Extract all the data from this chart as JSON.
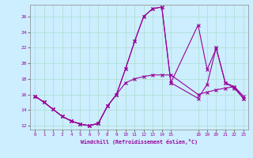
{
  "xlabel": "Windchill (Refroidissement éolien,°C)",
  "background_color": "#cceeff",
  "grid_color": "#aaddcc",
  "line_color": "#990099",
  "xlim": [
    -0.5,
    23.5
  ],
  "ylim": [
    11.5,
    27.5
  ],
  "xticks": [
    0,
    1,
    2,
    3,
    4,
    5,
    6,
    7,
    8,
    9,
    10,
    11,
    12,
    13,
    14,
    15,
    18,
    19,
    20,
    21,
    22,
    23
  ],
  "yticks": [
    12,
    14,
    16,
    18,
    20,
    22,
    24,
    26
  ],
  "line1_x": [
    0,
    1,
    2,
    3,
    4,
    5,
    6,
    7,
    8,
    9,
    10,
    11,
    12,
    13,
    14,
    15,
    18,
    19,
    20,
    21,
    22,
    23
  ],
  "line1_y": [
    15.8,
    15.0,
    14.1,
    13.2,
    12.6,
    12.2,
    12.0,
    12.3,
    14.5,
    16.0,
    17.5,
    18.0,
    18.3,
    18.5,
    18.5,
    18.5,
    16.0,
    16.3,
    16.6,
    16.8,
    17.0,
    15.8
  ],
  "line2_x": [
    0,
    1,
    2,
    3,
    4,
    5,
    6,
    7,
    8,
    9,
    10,
    11,
    12,
    13,
    14,
    15,
    18,
    19,
    20,
    21,
    22,
    23
  ],
  "line2_y": [
    15.8,
    15.0,
    14.1,
    13.2,
    12.6,
    12.2,
    12.0,
    12.3,
    14.5,
    16.0,
    19.3,
    22.8,
    26.0,
    27.0,
    27.2,
    17.5,
    24.9,
    19.2,
    21.9,
    17.5,
    16.8,
    15.5
  ],
  "line3_x": [
    0,
    1,
    2,
    3,
    4,
    5,
    6,
    7,
    8,
    9,
    10,
    11,
    12,
    13,
    14,
    15,
    18,
    19,
    20,
    21,
    22,
    23
  ],
  "line3_y": [
    15.8,
    15.0,
    14.1,
    13.2,
    12.6,
    12.2,
    12.0,
    12.3,
    14.5,
    16.0,
    19.3,
    22.8,
    26.0,
    27.0,
    27.2,
    17.5,
    15.5,
    17.3,
    22.0,
    17.5,
    17.0,
    15.5
  ]
}
